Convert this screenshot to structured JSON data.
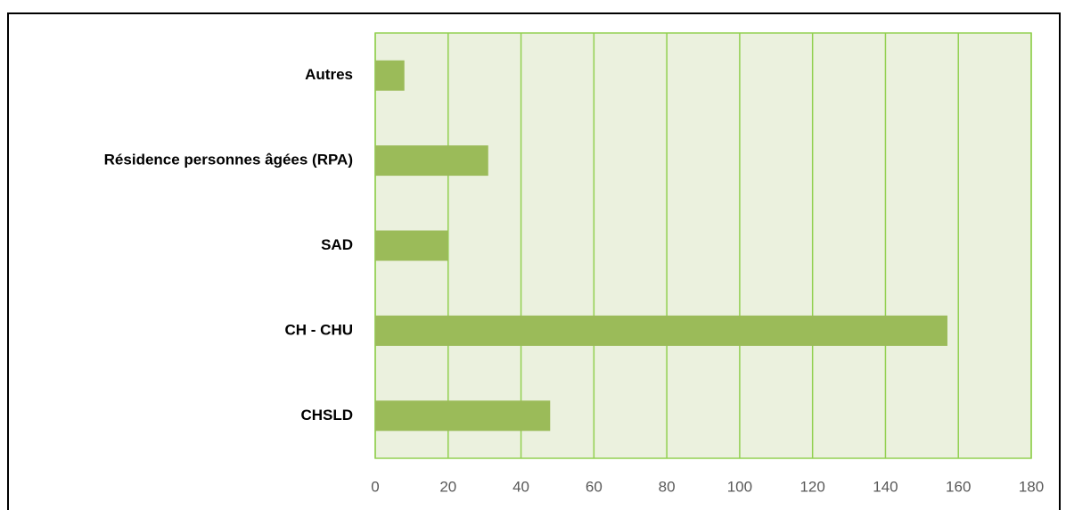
{
  "chart_data": {
    "type": "bar",
    "orientation": "horizontal",
    "categories": [
      "Autres",
      "Résidence personnes âgées (RPA)",
      "SAD",
      "CH - CHU",
      "CHSLD"
    ],
    "values": [
      8,
      31,
      20,
      157,
      48
    ],
    "color": "#9bbb59",
    "xlim": [
      0,
      180
    ],
    "xticks": [
      0,
      20,
      40,
      60,
      80,
      100,
      120,
      140,
      160,
      180
    ],
    "grid": true
  }
}
